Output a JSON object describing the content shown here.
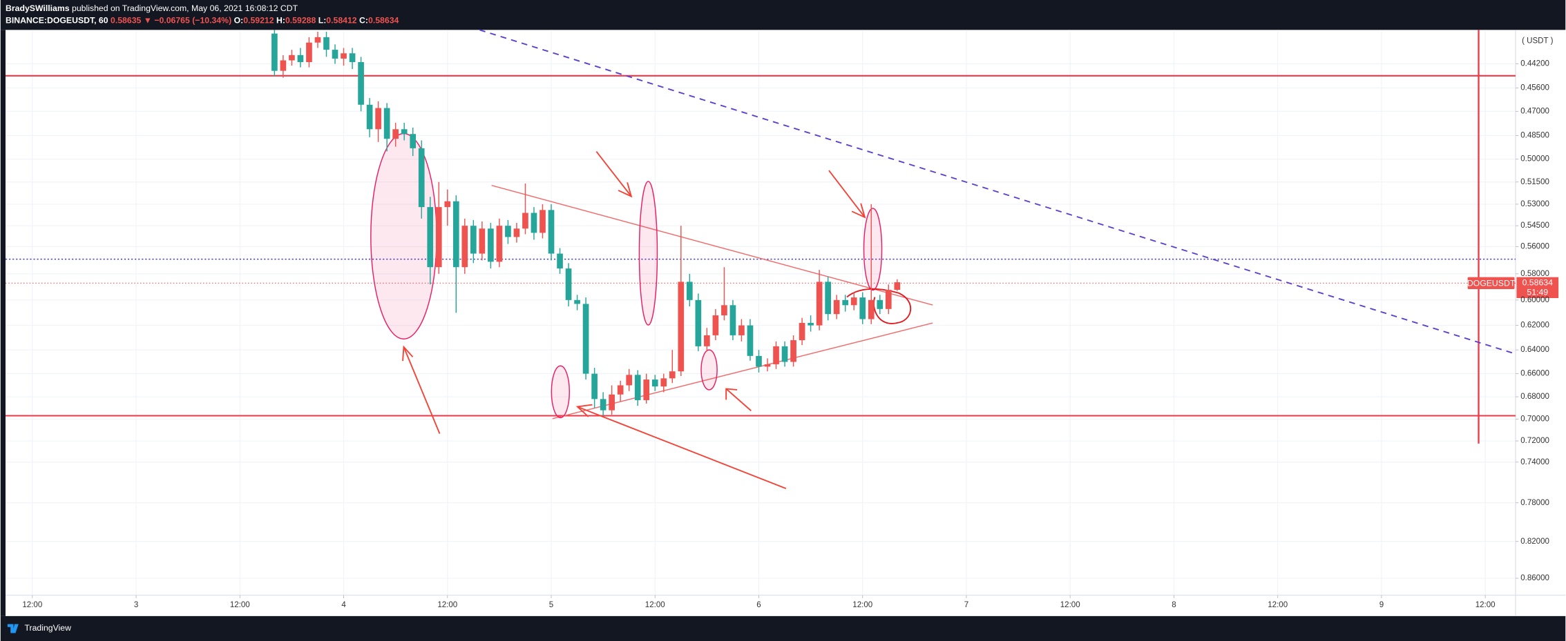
{
  "header": {
    "author": "BradySWilliams",
    "published": "published on TradingView.com, May 06, 2021 16:08:12 CDT",
    "symbol": "BINANCE:DOGEUSDT, 60",
    "last": "0.58635",
    "change": "▼ −0.06765 (−10.34%)",
    "ohlc": [
      {
        "label": "O:",
        "value": "0.59212"
      },
      {
        "label": "H:",
        "value": "0.59288"
      },
      {
        "label": "L:",
        "value": "0.58412"
      },
      {
        "label": "C:",
        "value": "0.58634"
      }
    ]
  },
  "chart_data": {
    "type": "candlestick",
    "log_scale": true,
    "y_inverted": true,
    "grid": true,
    "y_unit_label": "( USDT )",
    "up_color": "#26a69a",
    "down_color": "#ef5350",
    "ylim": [
      0.423,
      0.879
    ],
    "yticks": [
      {
        "value": 0.442,
        "label": "0.44200"
      },
      {
        "value": 0.456,
        "label": "0.45600"
      },
      {
        "value": 0.47,
        "label": "0.47000"
      },
      {
        "value": 0.485,
        "label": "0.48500"
      },
      {
        "value": 0.5,
        "label": "0.50000"
      },
      {
        "value": 0.515,
        "label": "0.51500"
      },
      {
        "value": 0.53,
        "label": "0.53000"
      },
      {
        "value": 0.545,
        "label": "0.54500"
      },
      {
        "value": 0.56,
        "label": "0.56000"
      },
      {
        "value": 0.58,
        "label": "0.58000"
      },
      {
        "value": 0.6,
        "label": "0.60000"
      },
      {
        "value": 0.62,
        "label": "0.62000"
      },
      {
        "value": 0.64,
        "label": "0.64000"
      },
      {
        "value": 0.66,
        "label": "0.66000"
      },
      {
        "value": 0.68,
        "label": "0.68000"
      },
      {
        "value": 0.7,
        "label": "0.70000"
      },
      {
        "value": 0.72,
        "label": "0.72000"
      },
      {
        "value": 0.74,
        "label": "0.74000"
      },
      {
        "value": 0.78,
        "label": "0.78000"
      },
      {
        "value": 0.82,
        "label": "0.82000"
      },
      {
        "value": 0.86,
        "label": "0.86000"
      }
    ],
    "xlim": [
      -3.1,
      171.5
    ],
    "xticks": [
      {
        "value": 0,
        "label": "12:00"
      },
      {
        "value": 12,
        "label": "3"
      },
      {
        "value": 24,
        "label": "12:00"
      },
      {
        "value": 36,
        "label": "4"
      },
      {
        "value": 48,
        "label": "12:00"
      },
      {
        "value": 60,
        "label": "5"
      },
      {
        "value": 72,
        "label": "12:00"
      },
      {
        "value": 84,
        "label": "6"
      },
      {
        "value": 96,
        "label": "12:00"
      },
      {
        "value": 108,
        "label": "7"
      },
      {
        "value": 120,
        "label": "12:00"
      },
      {
        "value": 132,
        "label": "8"
      },
      {
        "value": 144,
        "label": "12:00"
      },
      {
        "value": 156,
        "label": "9"
      },
      {
        "value": 168,
        "label": "12:00"
      }
    ],
    "x": [
      28,
      29,
      30,
      31,
      32,
      33,
      34,
      35,
      36,
      37,
      38,
      39,
      40,
      41,
      42,
      43,
      44,
      45,
      46,
      47,
      48,
      49,
      50,
      51,
      52,
      53,
      54,
      55,
      56,
      57,
      58,
      59,
      60,
      61,
      62,
      63,
      64,
      65,
      66,
      67,
      68,
      69,
      70,
      71,
      72,
      73,
      74,
      75,
      76,
      77,
      78,
      79,
      80,
      81,
      82,
      83,
      84,
      85,
      86,
      87,
      88,
      89,
      90,
      91,
      92,
      93,
      94,
      95,
      96,
      97,
      98,
      99,
      100
    ],
    "opens": [
      0.425,
      0.446,
      0.44,
      0.437,
      0.441,
      0.43,
      0.427,
      0.434,
      0.439,
      0.436,
      0.441,
      0.466,
      0.481,
      0.468,
      0.487,
      0.481,
      0.484,
      0.493,
      0.532,
      0.575,
      0.532,
      0.528,
      0.575,
      0.545,
      0.565,
      0.547,
      0.571,
      0.545,
      0.553,
      0.547,
      0.536,
      0.55,
      0.534,
      0.565,
      0.576,
      0.6,
      0.603,
      0.66,
      0.682,
      0.692,
      0.678,
      0.67,
      0.661,
      0.683,
      0.665,
      0.671,
      0.664,
      0.658,
      0.586,
      0.6,
      0.637,
      0.628,
      0.612,
      0.604,
      0.628,
      0.62,
      0.645,
      0.654,
      0.652,
      0.637,
      0.65,
      0.632,
      0.618,
      0.62,
      0.586,
      0.611,
      0.6,
      0.604,
      0.598,
      0.615,
      0.6,
      0.607,
      0.59212
    ],
    "highs": [
      0.449,
      0.45,
      0.443,
      0.444,
      0.444,
      0.433,
      0.438,
      0.442,
      0.443,
      0.445,
      0.47,
      0.486,
      0.489,
      0.495,
      0.492,
      0.488,
      0.498,
      0.54,
      0.588,
      0.58,
      0.545,
      0.61,
      0.58,
      0.572,
      0.57,
      0.576,
      0.575,
      0.558,
      0.557,
      0.551,
      0.555,
      0.554,
      0.57,
      0.58,
      0.605,
      0.608,
      0.665,
      0.69,
      0.697,
      0.696,
      0.684,
      0.675,
      0.688,
      0.686,
      0.675,
      0.676,
      0.668,
      0.662,
      0.605,
      0.641,
      0.641,
      0.632,
      0.616,
      0.632,
      0.633,
      0.649,
      0.659,
      0.658,
      0.656,
      0.654,
      0.654,
      0.636,
      0.625,
      0.624,
      0.616,
      0.615,
      0.609,
      0.608,
      0.619,
      0.619,
      0.611,
      0.611,
      0.59288
    ],
    "lows": [
      0.422,
      0.437,
      0.434,
      0.433,
      0.427,
      0.424,
      0.424,
      0.431,
      0.433,
      0.433,
      0.438,
      0.462,
      0.464,
      0.465,
      0.477,
      0.477,
      0.48,
      0.488,
      0.525,
      0.515,
      0.52,
      0.524,
      0.54,
      0.541,
      0.542,
      0.543,
      0.54,
      0.541,
      0.543,
      0.516,
      0.532,
      0.53,
      0.53,
      0.561,
      0.572,
      0.596,
      0.598,
      0.655,
      0.676,
      0.67,
      0.666,
      0.656,
      0.657,
      0.66,
      0.661,
      0.66,
      0.64,
      0.545,
      0.58,
      0.595,
      0.622,
      0.607,
      0.575,
      0.6,
      0.615,
      0.615,
      0.64,
      0.647,
      0.633,
      0.633,
      0.628,
      0.614,
      0.612,
      0.577,
      0.582,
      0.596,
      0.596,
      0.594,
      0.594,
      0.53,
      0.596,
      0.588,
      0.58412
    ],
    "closes": [
      0.446,
      0.44,
      0.437,
      0.441,
      0.43,
      0.427,
      0.434,
      0.439,
      0.436,
      0.441,
      0.466,
      0.481,
      0.468,
      0.487,
      0.481,
      0.484,
      0.493,
      0.532,
      0.575,
      0.532,
      0.528,
      0.575,
      0.545,
      0.565,
      0.547,
      0.571,
      0.545,
      0.553,
      0.547,
      0.536,
      0.55,
      0.534,
      0.565,
      0.576,
      0.6,
      0.603,
      0.66,
      0.682,
      0.692,
      0.678,
      0.67,
      0.661,
      0.683,
      0.665,
      0.671,
      0.664,
      0.658,
      0.586,
      0.6,
      0.637,
      0.628,
      0.612,
      0.604,
      0.628,
      0.62,
      0.645,
      0.654,
      0.652,
      0.637,
      0.65,
      0.632,
      0.618,
      0.62,
      0.586,
      0.611,
      0.6,
      0.604,
      0.598,
      0.615,
      0.6,
      0.607,
      0.59212,
      0.58634
    ],
    "symbol_tag": "DOGEUSDT",
    "last_price": "0.58634",
    "countdown": "51:49"
  },
  "footer": {
    "brand": "TradingView"
  }
}
